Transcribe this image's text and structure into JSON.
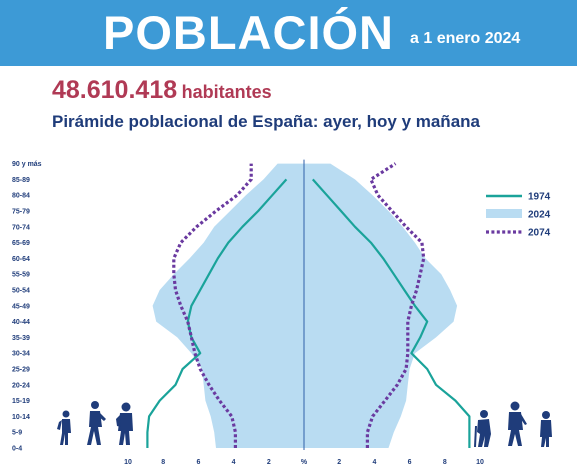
{
  "banner": {
    "title": "POBLACIÓN",
    "subtitle": "a 1 enero 2024",
    "color": "#3d9ad6"
  },
  "population": {
    "value": "48.610.418",
    "unit": "habitantes",
    "color": "#b03a55"
  },
  "chart_title": "Pirámide poblacional de España: ayer, hoy y mañana",
  "chart_data": {
    "type": "area",
    "subtype": "population-pyramid",
    "title": "Pirámide poblacional de España: ayer, hoy y mañana",
    "x_unit": "%",
    "x_ticks": [
      "10",
      "8",
      "6",
      "4",
      "2",
      "%",
      "2",
      "4",
      "6",
      "8",
      "10"
    ],
    "xlim": [
      -11,
      11
    ],
    "age_groups": [
      "0-4",
      "5-9",
      "10-14",
      "15-19",
      "20-24",
      "25-29",
      "30-34",
      "35-39",
      "40-44",
      "45-49",
      "50-54",
      "55-59",
      "60-64",
      "65-69",
      "70-74",
      "75-79",
      "80-84",
      "85-89",
      "90 y más"
    ],
    "legend_position": "right",
    "series": [
      {
        "name": "1974",
        "style": "line",
        "color": "#1aa39a",
        "left": [
          8.9,
          8.9,
          8.8,
          8.2,
          7.3,
          6.9,
          5.9,
          6.4,
          6.6,
          6.4,
          5.9,
          5.4,
          4.9,
          4.3,
          3.5,
          2.6,
          1.8,
          1.0
        ],
        "right": [
          9.4,
          9.4,
          9.4,
          8.6,
          7.5,
          7.0,
          6.1,
          6.6,
          7.0,
          6.3,
          5.7,
          5.1,
          4.5,
          3.8,
          2.9,
          2.1,
          1.3,
          0.5
        ]
      },
      {
        "name": "2024",
        "style": "area",
        "color": "#b9dcf2",
        "left": [
          5.0,
          5.1,
          5.3,
          5.6,
          5.7,
          5.8,
          6.4,
          7.2,
          8.4,
          8.6,
          8.2,
          7.4,
          6.5,
          5.7,
          5.1,
          4.2,
          3.3,
          2.3,
          1.5
        ],
        "right": [
          4.8,
          5.1,
          5.5,
          5.8,
          5.9,
          6.0,
          6.3,
          7.5,
          8.5,
          8.7,
          8.3,
          7.8,
          6.9,
          6.3,
          5.6,
          4.8,
          3.9,
          2.9,
          1.5
        ]
      },
      {
        "name": "2074",
        "style": "dotted",
        "color": "#6a3aa0",
        "left": [
          3.9,
          3.9,
          4.1,
          4.8,
          5.4,
          5.9,
          6.2,
          6.4,
          6.6,
          7.0,
          7.3,
          7.4,
          7.4,
          7.0,
          6.1,
          5.0,
          3.8,
          3.0,
          3.0
        ],
        "right": [
          3.6,
          3.6,
          3.9,
          4.6,
          5.3,
          5.8,
          5.9,
          5.9,
          5.9,
          6.1,
          6.4,
          6.6,
          6.8,
          6.7,
          5.8,
          5.0,
          4.2,
          3.8,
          5.2
        ]
      }
    ]
  }
}
